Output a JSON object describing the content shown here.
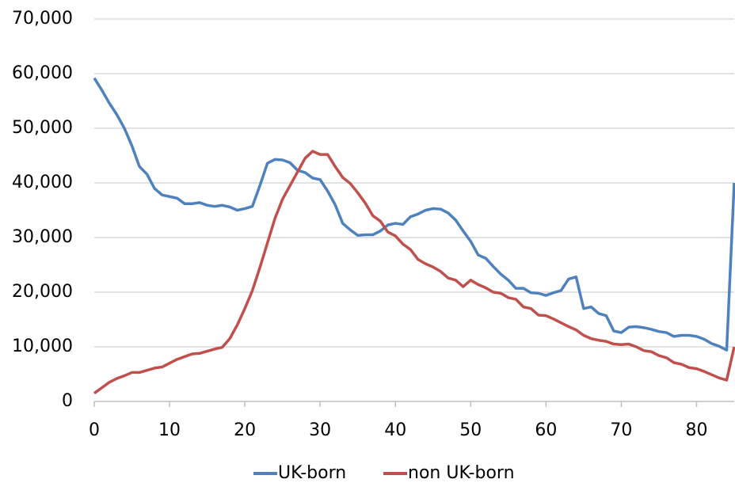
{
  "chart_data": {
    "type": "line",
    "x": [
      0,
      1,
      2,
      3,
      4,
      5,
      6,
      7,
      8,
      9,
      10,
      11,
      12,
      13,
      14,
      15,
      16,
      17,
      18,
      19,
      20,
      21,
      22,
      23,
      24,
      25,
      26,
      27,
      28,
      29,
      30,
      31,
      32,
      33,
      34,
      35,
      36,
      37,
      38,
      39,
      40,
      41,
      42,
      43,
      44,
      45,
      46,
      47,
      48,
      49,
      50,
      51,
      52,
      53,
      54,
      55,
      56,
      57,
      58,
      59,
      60,
      61,
      62,
      63,
      64,
      65,
      66,
      67,
      68,
      69,
      70,
      71,
      72,
      73,
      74,
      75,
      76,
      77,
      78,
      79,
      80,
      81,
      82,
      83,
      84,
      85
    ],
    "series": [
      {
        "name": "UK-born",
        "color": "#4f81bd",
        "values": [
          59200,
          57000,
          54600,
          52500,
          50000,
          46800,
          43000,
          41600,
          39000,
          37800,
          37500,
          37200,
          36200,
          36200,
          36400,
          35900,
          35700,
          35900,
          35600,
          35000,
          35300,
          35700,
          39500,
          43600,
          44300,
          44200,
          43700,
          42300,
          41900,
          40900,
          40600,
          38500,
          36000,
          32600,
          31400,
          30400,
          30500,
          30500,
          31200,
          32300,
          32600,
          32400,
          33800,
          34300,
          35000,
          35300,
          35200,
          34500,
          33200,
          31200,
          29300,
          26800,
          26200,
          24700,
          23300,
          22200,
          20700,
          20700,
          19900,
          19800,
          19400,
          19900,
          20300,
          22400,
          22800,
          17000,
          17300,
          16100,
          15700,
          12900,
          12600,
          13600,
          13700,
          13500,
          13200,
          12800,
          12600,
          11900,
          12100,
          12100,
          11900,
          11400,
          10600,
          10100,
          9400,
          40000
        ]
      },
      {
        "name": "non UK-born",
        "color": "#c0504d",
        "values": [
          1500,
          2500,
          3500,
          4200,
          4700,
          5300,
          5300,
          5700,
          6100,
          6300,
          7000,
          7700,
          8200,
          8700,
          8800,
          9200,
          9600,
          9900,
          11500,
          14000,
          17000,
          20300,
          24500,
          29000,
          33500,
          37000,
          39500,
          42000,
          44500,
          45800,
          45200,
          45200,
          43000,
          41000,
          39900,
          38200,
          36300,
          34000,
          33000,
          31000,
          30300,
          28800,
          27800,
          26000,
          25200,
          24600,
          23800,
          22600,
          22200,
          21000,
          22200,
          21400,
          20800,
          20000,
          19800,
          19000,
          18700,
          17300,
          17000,
          15800,
          15700,
          15100,
          14400,
          13700,
          13100,
          12100,
          11500,
          11200,
          11000,
          10500,
          10400,
          10500,
          10000,
          9300,
          9100,
          8400,
          8000,
          7100,
          6800,
          6200,
          6000,
          5500,
          4900,
          4300,
          3900,
          10000
        ]
      }
    ],
    "xlim": [
      0,
      85
    ],
    "xticks": [
      0,
      10,
      20,
      30,
      40,
      50,
      60,
      70,
      80
    ],
    "ylim": [
      0,
      70000
    ],
    "yticks": [
      0,
      {
        "value": 10000,
        "label": "10,000"
      },
      {
        "value": 20000,
        "label": "20,000"
      },
      {
        "value": 30000,
        "label": "30,000"
      },
      {
        "value": 40000,
        "label": "40,000"
      },
      {
        "value": 50000,
        "label": "50,000"
      },
      {
        "value": 60000,
        "label": "60,000"
      },
      {
        "value": 70000,
        "label": "70,000"
      }
    ],
    "grid": true,
    "legend": "bottom"
  }
}
